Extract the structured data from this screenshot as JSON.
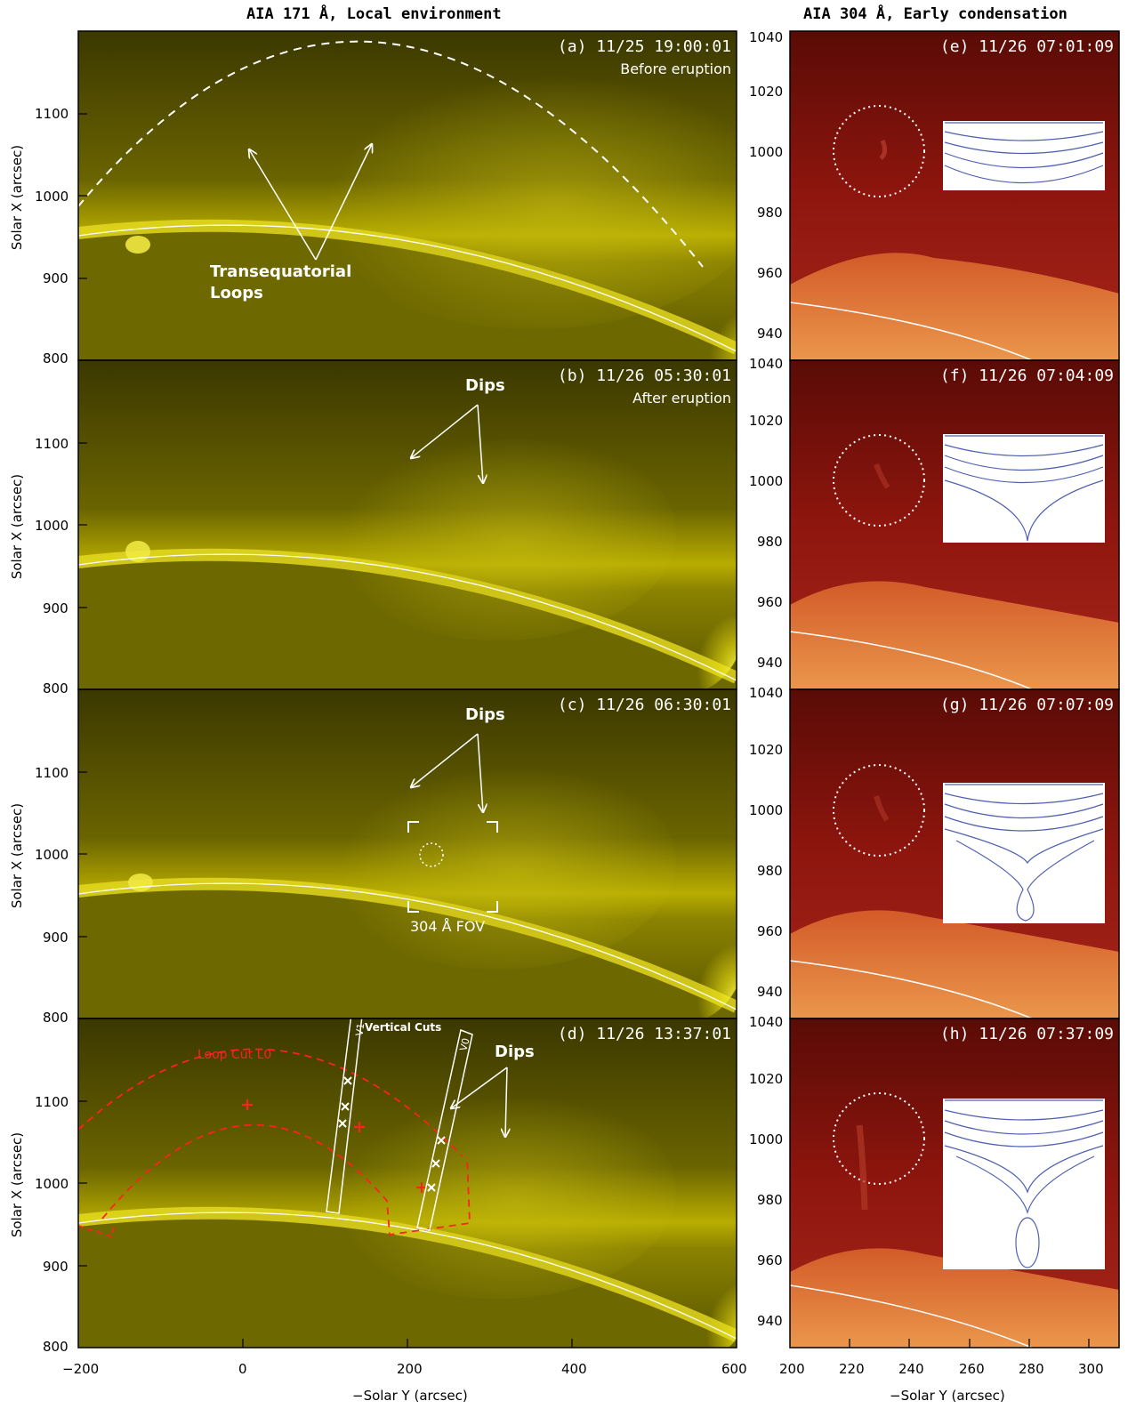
{
  "titles": {
    "left": "AIA 171 Å, Local environment",
    "right": "AIA 304 Å, Early condensation"
  },
  "left_panels": [
    {
      "stamp": "(a) 11/25 19:00:01",
      "sub": "Before eruption"
    },
    {
      "stamp": "(b) 11/26 05:30:01",
      "sub": "After eruption"
    },
    {
      "stamp": "(c) 11/26 06:30:01",
      "sub": ""
    },
    {
      "stamp": "(d) 11/26 13:37:01",
      "sub": ""
    }
  ],
  "right_panels": [
    {
      "stamp": "(e) 11/26 07:01:09"
    },
    {
      "stamp": "(f) 11/26 07:04:09"
    },
    {
      "stamp": "(g) 11/26 07:07:09"
    },
    {
      "stamp": "(h) 11/26 07:37:09"
    }
  ],
  "annotations": {
    "transequatorial_1": "Transequatorial",
    "transequatorial_2": "Loops",
    "dips": "Dips",
    "fov": "304 Å FOV",
    "loop_cut": "Loop Cut L0",
    "vertical_cuts": "Vertical Cuts",
    "v1": "V1",
    "v0": "V0"
  },
  "axes": {
    "left_ylabel": "Solar X (arcsec)",
    "left_xlabel": "−Solar Y (arcsec)",
    "right_xlabel": "−Solar Y (arcsec)",
    "left_yticks": [
      "1100",
      "1000",
      "900",
      "800"
    ],
    "right_yticks_full": [
      "1040",
      "1020",
      "1000",
      "980",
      "960",
      "940"
    ],
    "right_yticks_bottom": [
      "1040",
      "1020",
      "1000",
      "980",
      "960",
      "940"
    ],
    "left_xticks": [
      "−200",
      "0",
      "200",
      "400",
      "600"
    ],
    "right_xticks": [
      "200",
      "220",
      "240",
      "260",
      "280",
      "300"
    ]
  },
  "colors": {
    "aia171": "#b9b000",
    "aia304": "#9a1a12",
    "annotation_red": "#ff2020"
  }
}
